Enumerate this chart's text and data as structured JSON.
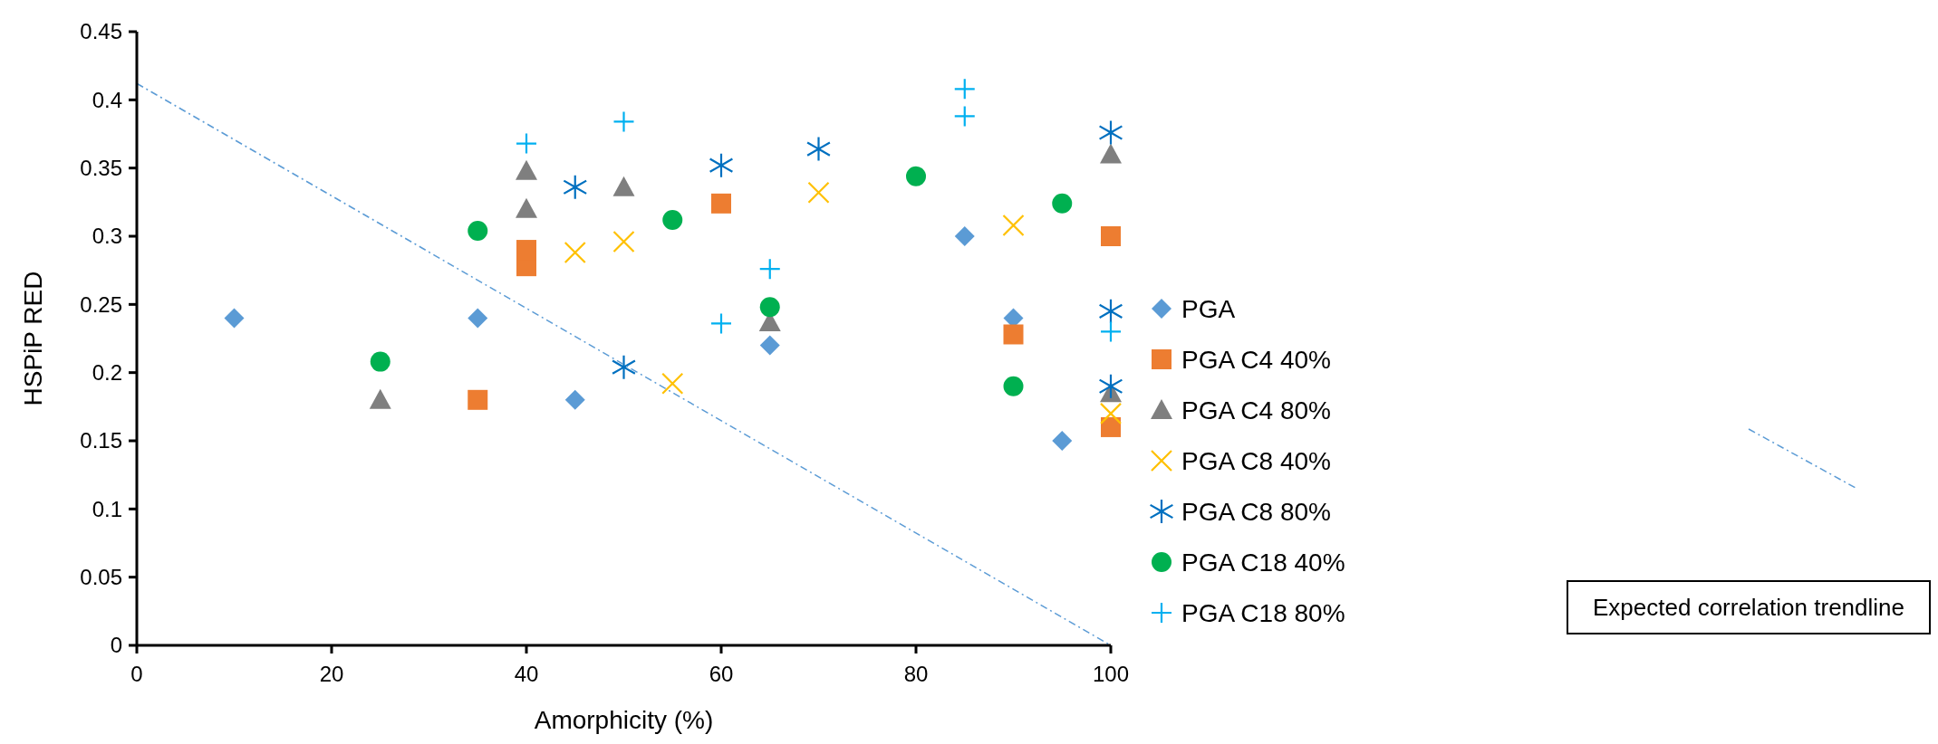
{
  "chart_data": {
    "type": "scatter",
    "xlabel": "Amorphicity (%)",
    "ylabel": "HSPiP RED",
    "xlim": [
      0,
      100
    ],
    "ylim": [
      0,
      0.45
    ],
    "xticks": [
      0,
      20,
      40,
      60,
      80,
      100
    ],
    "yticks": [
      0,
      0.05,
      0.1,
      0.15,
      0.2,
      0.25,
      0.3,
      0.35,
      0.4,
      0.45
    ],
    "grid": false,
    "legend": "right",
    "series": [
      {
        "name": "PGA",
        "color": "#5b9bd5",
        "marker": "diamond",
        "x": [
          10,
          35,
          45,
          65,
          85,
          90,
          95
        ],
        "values": [
          0.24,
          0.24,
          0.18,
          0.22,
          0.3,
          0.24,
          0.15
        ]
      },
      {
        "name": "PGA C4 40%",
        "color": "#ed7d31",
        "marker": "square",
        "x": [
          35,
          40,
          40,
          60,
          90,
          100,
          100
        ],
        "values": [
          0.18,
          0.278,
          0.29,
          0.324,
          0.228,
          0.3,
          0.16
        ]
      },
      {
        "name": "PGA C4 80%",
        "color": "#7f7f7f",
        "marker": "triangle",
        "x": [
          25,
          40,
          40,
          50,
          65,
          100,
          100
        ],
        "values": [
          0.18,
          0.348,
          0.32,
          0.336,
          0.237,
          0.36,
          0.185
        ]
      },
      {
        "name": "PGA C8 40%",
        "color": "#ffc000",
        "marker": "x",
        "x": [
          45,
          50,
          55,
          70,
          90,
          100
        ],
        "values": [
          0.288,
          0.296,
          0.192,
          0.332,
          0.308,
          0.17
        ]
      },
      {
        "name": "PGA C8 80%",
        "color": "#0070c0",
        "marker": "star",
        "x": [
          45,
          50,
          60,
          70,
          100,
          100,
          100
        ],
        "values": [
          0.336,
          0.204,
          0.352,
          0.364,
          0.376,
          0.245,
          0.19
        ]
      },
      {
        "name": "PGA C18 40%",
        "color": "#00b050",
        "marker": "circle",
        "x": [
          25,
          35,
          55,
          65,
          80,
          90,
          95
        ],
        "values": [
          0.208,
          0.304,
          0.312,
          0.248,
          0.344,
          0.19,
          0.324
        ]
      },
      {
        "name": "PGA C18 80%",
        "color": "#00b0f0",
        "marker": "cross",
        "x": [
          40,
          50,
          60,
          65,
          85,
          85,
          100
        ],
        "values": [
          0.368,
          0.384,
          0.236,
          0.276,
          0.408,
          0.388,
          0.23
        ]
      },
      {
        "type": "line",
        "color": "#5b9bd5",
        "line_style": "dashed",
        "marker": "none",
        "x": [
          0,
          100
        ],
        "values": [
          0.412,
          0
        ]
      }
    ],
    "annotations": [
      "Expected correlation trendline"
    ]
  }
}
